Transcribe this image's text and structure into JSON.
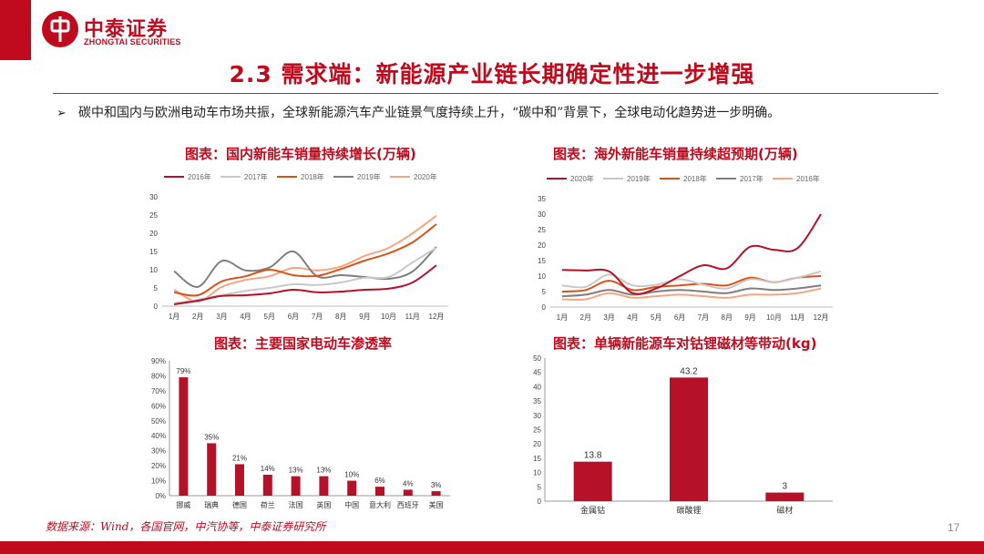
{
  "brand": {
    "name_cn": "中泰证券",
    "name_en": "ZHONGTAI SECURITIES",
    "color": "#c00a1e"
  },
  "slide": {
    "title": "2.3 需求端：新能源产业链长期确定性进一步增强",
    "bullet": "碳中和国内与欧洲电动车市场共振，全球新能源汽车产业链景气度持续上升，“碳中和”背景下，全球电动化趋势进一步明确。",
    "source": "数据来源：Wind，各国官网，中汽协等，中泰证券研究所",
    "page_number": "17"
  },
  "chart_data": [
    {
      "id": "domestic",
      "type": "line",
      "title": "图表：国内新能车销量持续增长(万辆)",
      "categories": [
        "1月",
        "2月",
        "3月",
        "4月",
        "5月",
        "6月",
        "7月",
        "8月",
        "9月",
        "10月",
        "11月",
        "12月"
      ],
      "ylim": [
        0,
        30
      ],
      "yticks": [
        0,
        5,
        10,
        15,
        20,
        25,
        30
      ],
      "legend_position": "top",
      "series": [
        {
          "name": "2016年",
          "color": "#b5122a",
          "values": [
            0.5,
            1.5,
            2.8,
            3.0,
            3.5,
            4.5,
            3.8,
            4.0,
            4.5,
            4.8,
            6.5,
            11.2
          ]
        },
        {
          "name": "2017年",
          "color": "#c8c8c8",
          "values": [
            0.8,
            1.8,
            3.0,
            4.2,
            5.0,
            6.0,
            5.8,
            6.5,
            7.8,
            8.0,
            12.0,
            16.0
          ]
        },
        {
          "name": "2018年",
          "color": "#d95319",
          "values": [
            3.8,
            3.0,
            6.8,
            8.2,
            10.0,
            8.5,
            8.3,
            10.2,
            12.5,
            14.5,
            17.5,
            22.5
          ]
        },
        {
          "name": "2019年",
          "color": "#7f7f7f",
          "values": [
            9.6,
            5.3,
            12.4,
            9.8,
            10.6,
            15.0,
            8.2,
            8.5,
            8.0,
            7.5,
            9.5,
            16.3
          ]
        },
        {
          "name": "2020年",
          "color": "#f4a582",
          "values": [
            4.5,
            1.3,
            5.3,
            7.2,
            8.2,
            10.5,
            9.8,
            10.9,
            13.8,
            16.0,
            20.0,
            24.8
          ]
        }
      ]
    },
    {
      "id": "overseas",
      "type": "line",
      "title": "图表：海外新能车销量持续超预期(万辆)",
      "categories": [
        "1月",
        "2月",
        "3月",
        "4月",
        "5月",
        "6月",
        "7月",
        "8月",
        "9月",
        "10月",
        "11月",
        "12月"
      ],
      "ylim": [
        0,
        35
      ],
      "yticks": [
        0,
        5,
        10,
        15,
        20,
        25,
        30,
        35
      ],
      "legend_position": "top",
      "series": [
        {
          "name": "2020年",
          "color": "#b5122a",
          "values": [
            12.0,
            11.8,
            11.5,
            4.5,
            6.0,
            10.0,
            13.5,
            12.5,
            19.5,
            18.5,
            19.0,
            30.0
          ]
        },
        {
          "name": "2019年",
          "color": "#c8c8c8",
          "values": [
            7.0,
            6.5,
            10.5,
            7.0,
            7.2,
            9.0,
            7.2,
            6.0,
            9.0,
            8.0,
            9.5,
            11.5
          ]
        },
        {
          "name": "2018年",
          "color": "#d95319",
          "values": [
            5.0,
            5.5,
            8.5,
            5.5,
            6.5,
            7.0,
            7.5,
            7.0,
            9.5,
            8.0,
            9.5,
            10.0
          ]
        },
        {
          "name": "2017年",
          "color": "#7f7f7f",
          "values": [
            3.5,
            4.0,
            5.5,
            4.0,
            5.0,
            5.5,
            5.0,
            4.5,
            6.0,
            5.5,
            6.0,
            7.0
          ]
        },
        {
          "name": "2016年",
          "color": "#f4a582",
          "values": [
            2.5,
            2.5,
            4.5,
            3.0,
            3.5,
            4.0,
            3.5,
            3.0,
            4.0,
            4.0,
            4.5,
            6.0
          ]
        }
      ]
    },
    {
      "id": "penetration",
      "type": "bar",
      "title": "图表：主要国家电动车渗透率",
      "categories": [
        "挪威",
        "瑞典",
        "德国",
        "荷兰",
        "法国",
        "英国",
        "中国",
        "意大利",
        "西班牙",
        "美国"
      ],
      "values": [
        0.79,
        0.35,
        0.21,
        0.14,
        0.13,
        0.13,
        0.1,
        0.06,
        0.04,
        0.03
      ],
      "data_labels": [
        "79%",
        "35%",
        "21%",
        "14%",
        "13%",
        "13%",
        "10%",
        "6%",
        "4%",
        "3%"
      ],
      "ylim": [
        0,
        0.9
      ],
      "yticks": [
        "0%",
        "10%",
        "20%",
        "30%",
        "40%",
        "50%",
        "60%",
        "70%",
        "80%",
        "90%"
      ],
      "color": "#b5122a"
    },
    {
      "id": "materials",
      "type": "bar",
      "title": "图表：单辆新能源车对钴锂磁材等带动(kg)",
      "categories": [
        "金属钴",
        "碳酸锂",
        "磁材"
      ],
      "values": [
        13.8,
        43.2,
        3
      ],
      "data_labels": [
        "13.8",
        "43.2",
        "3"
      ],
      "ylim": [
        0,
        50
      ],
      "yticks": [
        0,
        5,
        10,
        15,
        20,
        25,
        30,
        35,
        40,
        45,
        50
      ],
      "color": "#b5122a"
    }
  ]
}
